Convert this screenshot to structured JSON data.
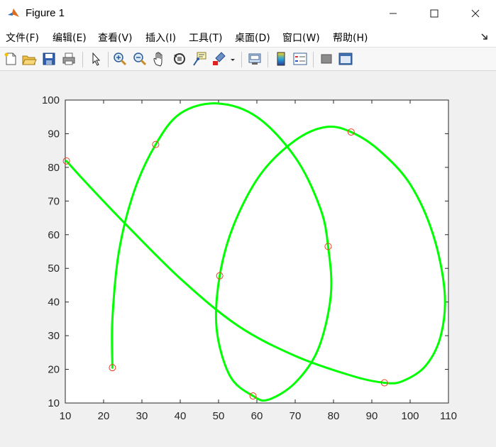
{
  "window": {
    "title": "Figure 1",
    "controls": {
      "minimize": "—",
      "maximize": "☐",
      "close": "✕"
    }
  },
  "menu": {
    "items": [
      "文件(F)",
      "编辑(E)",
      "查看(V)",
      "插入(I)",
      "工具(T)",
      "桌面(D)",
      "窗口(W)",
      "帮助(H)"
    ]
  },
  "toolbar": {
    "buttons": [
      "new-figure",
      "open-file",
      "save",
      "print",
      "edit-plot",
      "zoom-in",
      "zoom-out",
      "pan",
      "rotate-3d",
      "data-cursor",
      "brush",
      "link-plot",
      "insert-colorbar",
      "insert-legend",
      "hide-plot-tools",
      "show-plot-tools"
    ]
  },
  "colors": {
    "curve": "#00ff00",
    "markers": "#e8401c",
    "axes_bg": "#ffffff",
    "figure_bg": "#f0f0f0"
  },
  "chart_data": {
    "type": "line",
    "xlim": [
      10,
      110
    ],
    "ylim": [
      10,
      100
    ],
    "xticks": [
      10,
      20,
      30,
      40,
      50,
      60,
      70,
      80,
      90,
      100,
      110
    ],
    "yticks": [
      10,
      20,
      30,
      40,
      50,
      60,
      70,
      80,
      90,
      100
    ],
    "grid": false,
    "control_points": [
      {
        "x": 22.3,
        "y": 20.5
      },
      {
        "x": 33.6,
        "y": 86.8
      },
      {
        "x": 50.3,
        "y": 47.8
      },
      {
        "x": 59.0,
        "y": 12.1
      },
      {
        "x": 78.6,
        "y": 56.5
      },
      {
        "x": 84.6,
        "y": 90.5
      },
      {
        "x": 93.3,
        "y": 16.0
      },
      {
        "x": 10.3,
        "y": 81.9
      }
    ],
    "curve_points": [
      {
        "x": 22.3,
        "y": 20.5
      },
      {
        "x": 22.3,
        "y": 35
      },
      {
        "x": 24,
        "y": 55
      },
      {
        "x": 28,
        "y": 73
      },
      {
        "x": 33.6,
        "y": 86.8
      },
      {
        "x": 40,
        "y": 96
      },
      {
        "x": 49.5,
        "y": 99
      },
      {
        "x": 60,
        "y": 95
      },
      {
        "x": 70,
        "y": 83
      },
      {
        "x": 76.5,
        "y": 68
      },
      {
        "x": 78.6,
        "y": 56.5
      },
      {
        "x": 79.3,
        "y": 42
      },
      {
        "x": 76,
        "y": 26
      },
      {
        "x": 70,
        "y": 16
      },
      {
        "x": 63,
        "y": 11
      },
      {
        "x": 59.0,
        "y": 12.1
      },
      {
        "x": 53,
        "y": 18
      },
      {
        "x": 49.5,
        "y": 32
      },
      {
        "x": 50.3,
        "y": 47.8
      },
      {
        "x": 54,
        "y": 63
      },
      {
        "x": 61,
        "y": 78
      },
      {
        "x": 70,
        "y": 88
      },
      {
        "x": 78,
        "y": 92
      },
      {
        "x": 84.6,
        "y": 90.5
      },
      {
        "x": 92,
        "y": 85
      },
      {
        "x": 100,
        "y": 75
      },
      {
        "x": 106,
        "y": 60
      },
      {
        "x": 109,
        "y": 43
      },
      {
        "x": 108,
        "y": 30
      },
      {
        "x": 104,
        "y": 21
      },
      {
        "x": 98,
        "y": 16.5
      },
      {
        "x": 93.3,
        "y": 16.0
      },
      {
        "x": 85,
        "y": 18
      },
      {
        "x": 70,
        "y": 24
      },
      {
        "x": 55,
        "y": 33
      },
      {
        "x": 40,
        "y": 47
      },
      {
        "x": 25,
        "y": 64
      },
      {
        "x": 15,
        "y": 76
      },
      {
        "x": 10.3,
        "y": 81.9
      }
    ]
  }
}
